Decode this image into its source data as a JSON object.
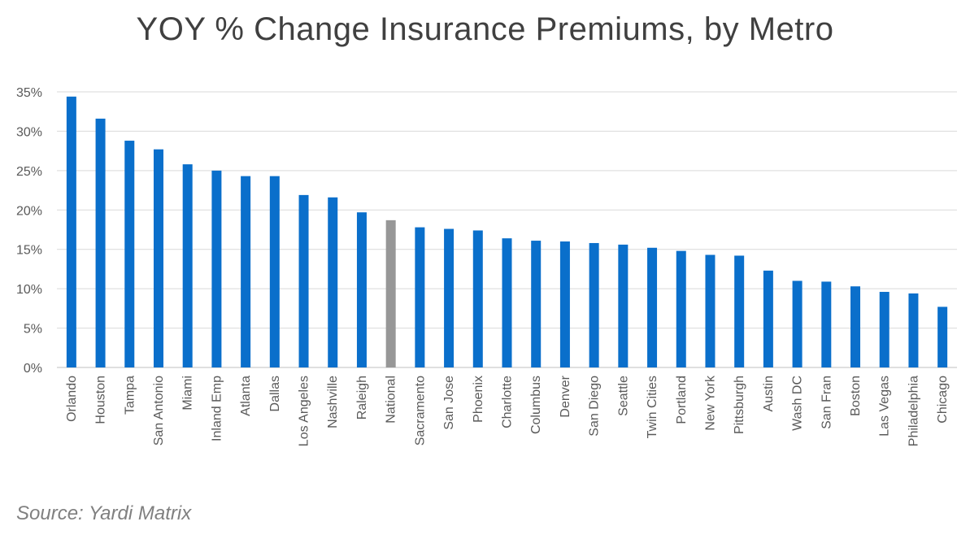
{
  "chart_data": {
    "type": "bar",
    "title": "YOY % Change Insurance Premiums, by Metro",
    "xlabel": "",
    "ylabel": "",
    "ylim": [
      0,
      35
    ],
    "yticks": [
      "0%",
      "5%",
      "10%",
      "15%",
      "20%",
      "25%",
      "30%",
      "35%"
    ],
    "grid": true,
    "categories": [
      "Orlando",
      "Houston",
      "Tampa",
      "San Antonio",
      "Miami",
      "Inland Emp",
      "Atlanta",
      "Dallas",
      "Los Angeles",
      "Nashville",
      "Raleigh",
      "National",
      "Sacramento",
      "San Jose",
      "Phoenix",
      "Charlotte",
      "Columbus",
      "Denver",
      "San Diego",
      "Seattle",
      "Twin Cities",
      "Portland",
      "New York",
      "Pittsburgh",
      "Austin",
      "Wash DC",
      "San Fran",
      "Boston",
      "Las Vegas",
      "Philadelphia",
      "Chicago"
    ],
    "values": [
      34.4,
      31.6,
      28.8,
      27.7,
      25.8,
      25.0,
      24.3,
      24.3,
      21.9,
      21.6,
      19.7,
      18.7,
      17.8,
      17.6,
      17.4,
      16.4,
      16.1,
      16.0,
      15.8,
      15.6,
      15.2,
      14.8,
      14.3,
      14.2,
      12.3,
      11.0,
      10.9,
      10.3,
      9.6,
      9.4,
      7.7
    ],
    "highlight_category": "National",
    "colors": {
      "bar": "#0A6FCB",
      "highlight": "#979797",
      "grid": "#D9D9D9"
    },
    "source": "Source: Yardi Matrix"
  }
}
